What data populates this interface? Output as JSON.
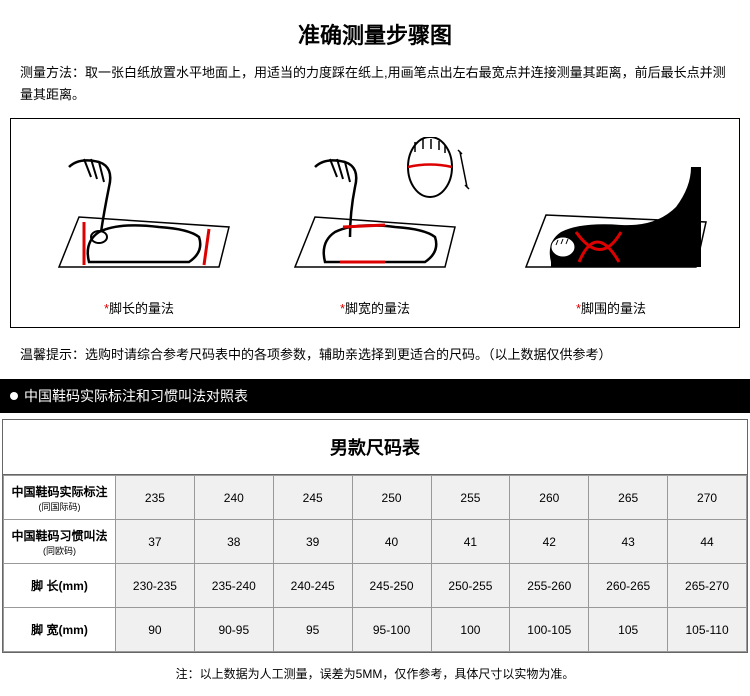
{
  "title": "准确测量步骤图",
  "method": "测量方法：取一张白纸放置水平地面上，用适当的力度踩在纸上,用画笔点出左右最宽点并连接测量其距离，前后最长点并测量其距离。",
  "diagrams": [
    {
      "label": "脚长的量法"
    },
    {
      "label": "脚宽的量法"
    },
    {
      "label": "脚围的量法"
    }
  ],
  "tip": "温馨提示：选购时请综合参考尺码表中的各项参数，辅助亲选择到更适合的尺码。（以上数据仅供参考）",
  "blackBar": "中国鞋码实际标注和习惯叫法对照表",
  "sizeTableTitle": "男款尺码表",
  "rows": [
    {
      "header": "中国鞋码实际标注",
      "sub": "(同国际码)",
      "cells": [
        "235",
        "240",
        "245",
        "250",
        "255",
        "260",
        "265",
        "270"
      ]
    },
    {
      "header": "中国鞋码习惯叫法",
      "sub": "(同欧码)",
      "cells": [
        "37",
        "38",
        "39",
        "40",
        "41",
        "42",
        "43",
        "44"
      ]
    },
    {
      "header": "脚 长(mm)",
      "sub": "",
      "cells": [
        "230-235",
        "235-240",
        "240-245",
        "245-250",
        "250-255",
        "255-260",
        "260-265",
        "265-270"
      ]
    },
    {
      "header": "脚 宽(mm)",
      "sub": "",
      "cells": [
        "90",
        "90-95",
        "95",
        "95-100",
        "100",
        "100-105",
        "105",
        "105-110"
      ]
    }
  ],
  "footnote": "注：以上数据为人工测量，误差为5MM，仅作参考，具体尺寸以实物为准。",
  "colors": {
    "accent": "#d00",
    "border": "#000"
  }
}
